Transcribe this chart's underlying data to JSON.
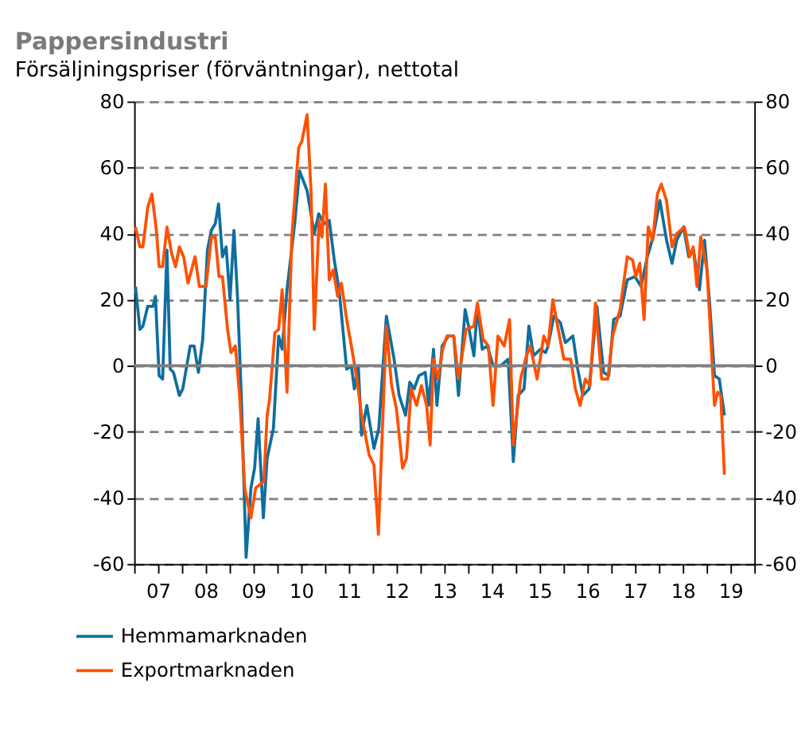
{
  "chart_data": {
    "type": "line",
    "title": "Pappersindustri",
    "subtitle": "Försäljningspriser (förväntningar), nettotal",
    "xlim": [
      "2007-01-01",
      "2020-01-01"
    ],
    "xticks": [
      {
        "value": "2007-01-01",
        "label": null
      },
      {
        "value": "2007-07-02",
        "label": "07"
      },
      {
        "value": "2008-01-01",
        "label": null
      },
      {
        "value": "2008-07-02",
        "label": "08"
      },
      {
        "value": "2009-01-01",
        "label": null
      },
      {
        "value": "2009-07-02",
        "label": "09"
      },
      {
        "value": "2010-01-01",
        "label": null
      },
      {
        "value": "2010-07-02",
        "label": "10"
      },
      {
        "value": "2011-01-01",
        "label": null
      },
      {
        "value": "2011-07-02",
        "label": "11"
      },
      {
        "value": "2012-01-01",
        "label": null
      },
      {
        "value": "2012-07-02",
        "label": "12"
      },
      {
        "value": "2013-01-01",
        "label": null
      },
      {
        "value": "2013-07-02",
        "label": "13"
      },
      {
        "value": "2014-01-01",
        "label": null
      },
      {
        "value": "2014-07-02",
        "label": "14"
      },
      {
        "value": "2015-01-01",
        "label": null
      },
      {
        "value": "2015-07-02",
        "label": "15"
      },
      {
        "value": "2016-01-01",
        "label": null
      },
      {
        "value": "2016-07-02",
        "label": "16"
      },
      {
        "value": "2017-01-01",
        "label": null
      },
      {
        "value": "2017-07-02",
        "label": "17"
      },
      {
        "value": "2018-01-01",
        "label": null
      },
      {
        "value": "2018-07-02",
        "label": "18"
      },
      {
        "value": "2019-01-01",
        "label": null
      },
      {
        "value": "2019-07-02",
        "label": "19"
      },
      {
        "value": "2020-01-01",
        "label": null
      }
    ],
    "ylim": [
      -60,
      80
    ],
    "yticks": [
      -60,
      -40,
      -20,
      0,
      20,
      40,
      60,
      80
    ],
    "y2lim": [
      -60,
      80
    ],
    "y2ticks": [
      -60,
      -40,
      -20,
      0,
      20,
      40,
      60,
      80
    ],
    "grid": "y",
    "legend": "bottom",
    "line_style": "solid",
    "marker": "none",
    "ref_lines": [
      {
        "axis": "y2",
        "value": 0,
        "label": null,
        "color": "#808080"
      }
    ],
    "series": [
      {
        "name": "Hemmamarknaden",
        "color": "#0f6e9e",
        "x": [
          "2007-01-11",
          "2007-02-14",
          "2007-03-09",
          "2007-04-15",
          "2007-05-25",
          "2007-06-13",
          "2007-07-11",
          "2007-08-07",
          "2007-09-09",
          "2007-10-04",
          "2007-10-29",
          "2007-12-13",
          "2008-01-08",
          "2008-03-05",
          "2008-04-04",
          "2008-05-07",
          "2008-06-09",
          "2008-07-15",
          "2008-08-14",
          "2008-09-13",
          "2008-10-08",
          "2008-11-07",
          "2008-12-05",
          "2009-01-04",
          "2009-02-03",
          "2009-03-02",
          "2009-04-01",
          "2009-05-07",
          "2009-06-13",
          "2009-07-11",
          "2009-08-07",
          "2009-09-16",
          "2009-10-15",
          "2009-12-02",
          "2010-01-11",
          "2010-02-07",
          "2010-03-16",
          "2010-05-14",
          "2010-06-20",
          "2010-08-17",
          "2010-10-11",
          "2010-11-14",
          "2010-12-27",
          "2011-02-03",
          "2011-03-13",
          "2011-04-19",
          "2011-06-16",
          "2011-07-22",
          "2011-08-14",
          "2011-09-13",
          "2011-10-08",
          "2011-11-17",
          "2012-01-11",
          "2012-02-17",
          "2012-04-15",
          "2012-06-13",
          "2012-07-22",
          "2012-09-09",
          "2012-10-11",
          "2012-11-14",
          "2012-12-20",
          "2013-02-07",
          "2013-03-05",
          "2013-04-11",
          "2013-05-07",
          "2013-06-16",
          "2013-08-03",
          "2013-09-13",
          "2013-10-19",
          "2013-12-09",
          "2014-01-04",
          "2014-02-14",
          "2014-03-13",
          "2014-04-19",
          "2014-05-28",
          "2014-07-11",
          "2014-09-09",
          "2014-11-03",
          "2014-12-13",
          "2015-01-19",
          "2015-03-05",
          "2015-04-11",
          "2015-05-17",
          "2015-07-08",
          "2015-08-17",
          "2015-09-05",
          "2015-10-19",
          "2015-12-09",
          "2016-01-15",
          "2016-03-13",
          "2016-04-19",
          "2016-05-28",
          "2016-07-15",
          "2016-09-13",
          "2016-11-03",
          "2016-12-13",
          "2017-01-19",
          "2017-03-09",
          "2017-05-03",
          "2017-07-01",
          "2017-08-17",
          "2017-10-04",
          "2017-11-17",
          "2018-01-08",
          "2018-02-28",
          "2018-04-11",
          "2018-05-17",
          "2018-07-08",
          "2018-08-17",
          "2018-09-23",
          "2018-11-07",
          "2018-12-16",
          "2019-01-22",
          "2019-03-02",
          "2019-04-08",
          "2019-05-17"
        ],
        "values": [
          24,
          11,
          12,
          18,
          18,
          21,
          -3,
          -4,
          35,
          -1,
          -2,
          -9,
          -7,
          6,
          6,
          -2,
          8,
          35,
          41,
          43,
          49,
          33,
          36,
          20,
          41,
          21,
          -10,
          -58,
          -37,
          -31,
          -16,
          -46,
          -28,
          -19,
          9,
          5,
          23,
          43,
          59,
          53,
          40,
          46,
          43,
          44,
          32,
          23,
          -1,
          0,
          -7,
          0,
          -21,
          -12,
          -25,
          -19,
          15,
          2,
          -9,
          -15,
          -5,
          -7,
          -3,
          -2,
          -12,
          5,
          -12,
          6,
          9,
          9,
          -9,
          17,
          12,
          3,
          18,
          5,
          6,
          0,
          0,
          2,
          -29,
          -9,
          -7,
          12,
          3,
          5,
          4,
          6,
          15,
          13,
          7,
          9,
          -1,
          -9,
          -7,
          18,
          -2,
          -3,
          14,
          15,
          26,
          27,
          24,
          33,
          39,
          50,
          38,
          31,
          38,
          42,
          33,
          35,
          23,
          38,
          20,
          -3,
          -4,
          -15
        ]
      },
      {
        "name": "Exportmarknaden",
        "color": "#ff5000",
        "x": [
          "2007-01-11",
          "2007-02-14",
          "2007-03-09",
          "2007-04-15",
          "2007-05-17",
          "2007-06-20",
          "2007-07-11",
          "2007-08-07",
          "2007-09-09",
          "2007-10-15",
          "2007-11-14",
          "2007-12-13",
          "2008-01-15",
          "2008-02-17",
          "2008-04-11",
          "2008-05-14",
          "2008-07-04",
          "2008-08-14",
          "2008-09-13",
          "2008-10-11",
          "2008-11-07",
          "2008-12-16",
          "2009-01-11",
          "2009-02-14",
          "2009-03-20",
          "2009-04-26",
          "2009-06-13",
          "2009-07-19",
          "2009-09-20",
          "2009-10-15",
          "2009-11-03",
          "2009-12-13",
          "2010-01-11",
          "2010-02-07",
          "2010-03-16",
          "2010-04-22",
          "2010-06-13",
          "2010-07-08",
          "2010-08-17",
          "2010-09-16",
          "2010-10-11",
          "2010-11-17",
          "2010-12-09",
          "2011-01-04",
          "2011-02-03",
          "2011-03-05",
          "2011-04-08",
          "2011-05-07",
          "2011-06-16",
          "2011-07-22",
          "2011-09-02",
          "2011-10-08",
          "2011-12-05",
          "2012-01-11",
          "2012-02-14",
          "2012-03-27",
          "2012-04-15",
          "2012-05-25",
          "2012-07-01",
          "2012-08-17",
          "2012-09-16",
          "2012-10-22",
          "2012-12-02",
          "2013-01-08",
          "2013-02-17",
          "2013-03-16",
          "2013-04-11",
          "2013-05-14",
          "2013-06-20",
          "2013-07-22",
          "2013-09-13",
          "2013-10-19",
          "2013-12-16",
          "2014-02-14",
          "2014-03-13",
          "2014-04-26",
          "2014-06-05",
          "2014-07-11",
          "2014-08-17",
          "2014-10-04",
          "2014-11-14",
          "2014-12-13",
          "2015-02-07",
          "2015-03-23",
          "2015-04-22",
          "2015-06-13",
          "2015-08-03",
          "2015-09-05",
          "2015-10-11",
          "2015-11-17",
          "2016-01-04",
          "2016-02-25",
          "2016-04-01",
          "2016-05-07",
          "2016-06-16",
          "2016-07-22",
          "2016-09-02",
          "2016-10-19",
          "2016-12-05",
          "2017-01-11",
          "2017-03-09",
          "2017-05-03",
          "2017-06-13",
          "2017-07-08",
          "2017-08-07",
          "2017-09-09",
          "2017-10-11",
          "2017-11-14",
          "2017-12-20",
          "2018-01-19",
          "2018-02-28",
          "2018-04-11",
          "2018-05-17",
          "2018-07-15",
          "2018-08-25",
          "2018-09-20",
          "2018-10-19",
          "2018-11-17",
          "2019-01-04",
          "2019-03-02",
          "2019-03-27",
          "2019-04-19",
          "2019-05-17"
        ],
        "values": [
          42,
          36,
          36,
          48,
          52,
          41,
          30,
          30,
          42,
          34,
          30,
          36,
          33,
          25,
          33,
          24,
          24,
          39,
          39,
          27,
          27,
          11,
          4,
          6,
          -10,
          -37,
          -46,
          -37,
          -35,
          -15,
          -10,
          10,
          11,
          23,
          -8,
          39,
          66,
          68,
          76,
          53,
          11,
          44,
          39,
          55,
          26,
          29,
          21,
          25,
          14,
          6,
          -4,
          -15,
          -27,
          -30,
          -51,
          -7,
          12,
          -6,
          -13,
          -31,
          -28,
          -7,
          -12,
          -6,
          -12,
          -24,
          2,
          -4,
          5,
          9,
          9,
          -4,
          11,
          12,
          19,
          8,
          6,
          -12,
          9,
          6,
          14,
          -24,
          -4,
          3,
          6,
          -4,
          9,
          6,
          20,
          12,
          2,
          2,
          -7,
          -12,
          -4,
          -6,
          19,
          -4,
          -4,
          9,
          17,
          33,
          32,
          27,
          31,
          14,
          42,
          38,
          52,
          55,
          50,
          36,
          40,
          42,
          33,
          36,
          24,
          39,
          29,
          -12,
          -8,
          -9,
          -33
        ]
      }
    ]
  }
}
